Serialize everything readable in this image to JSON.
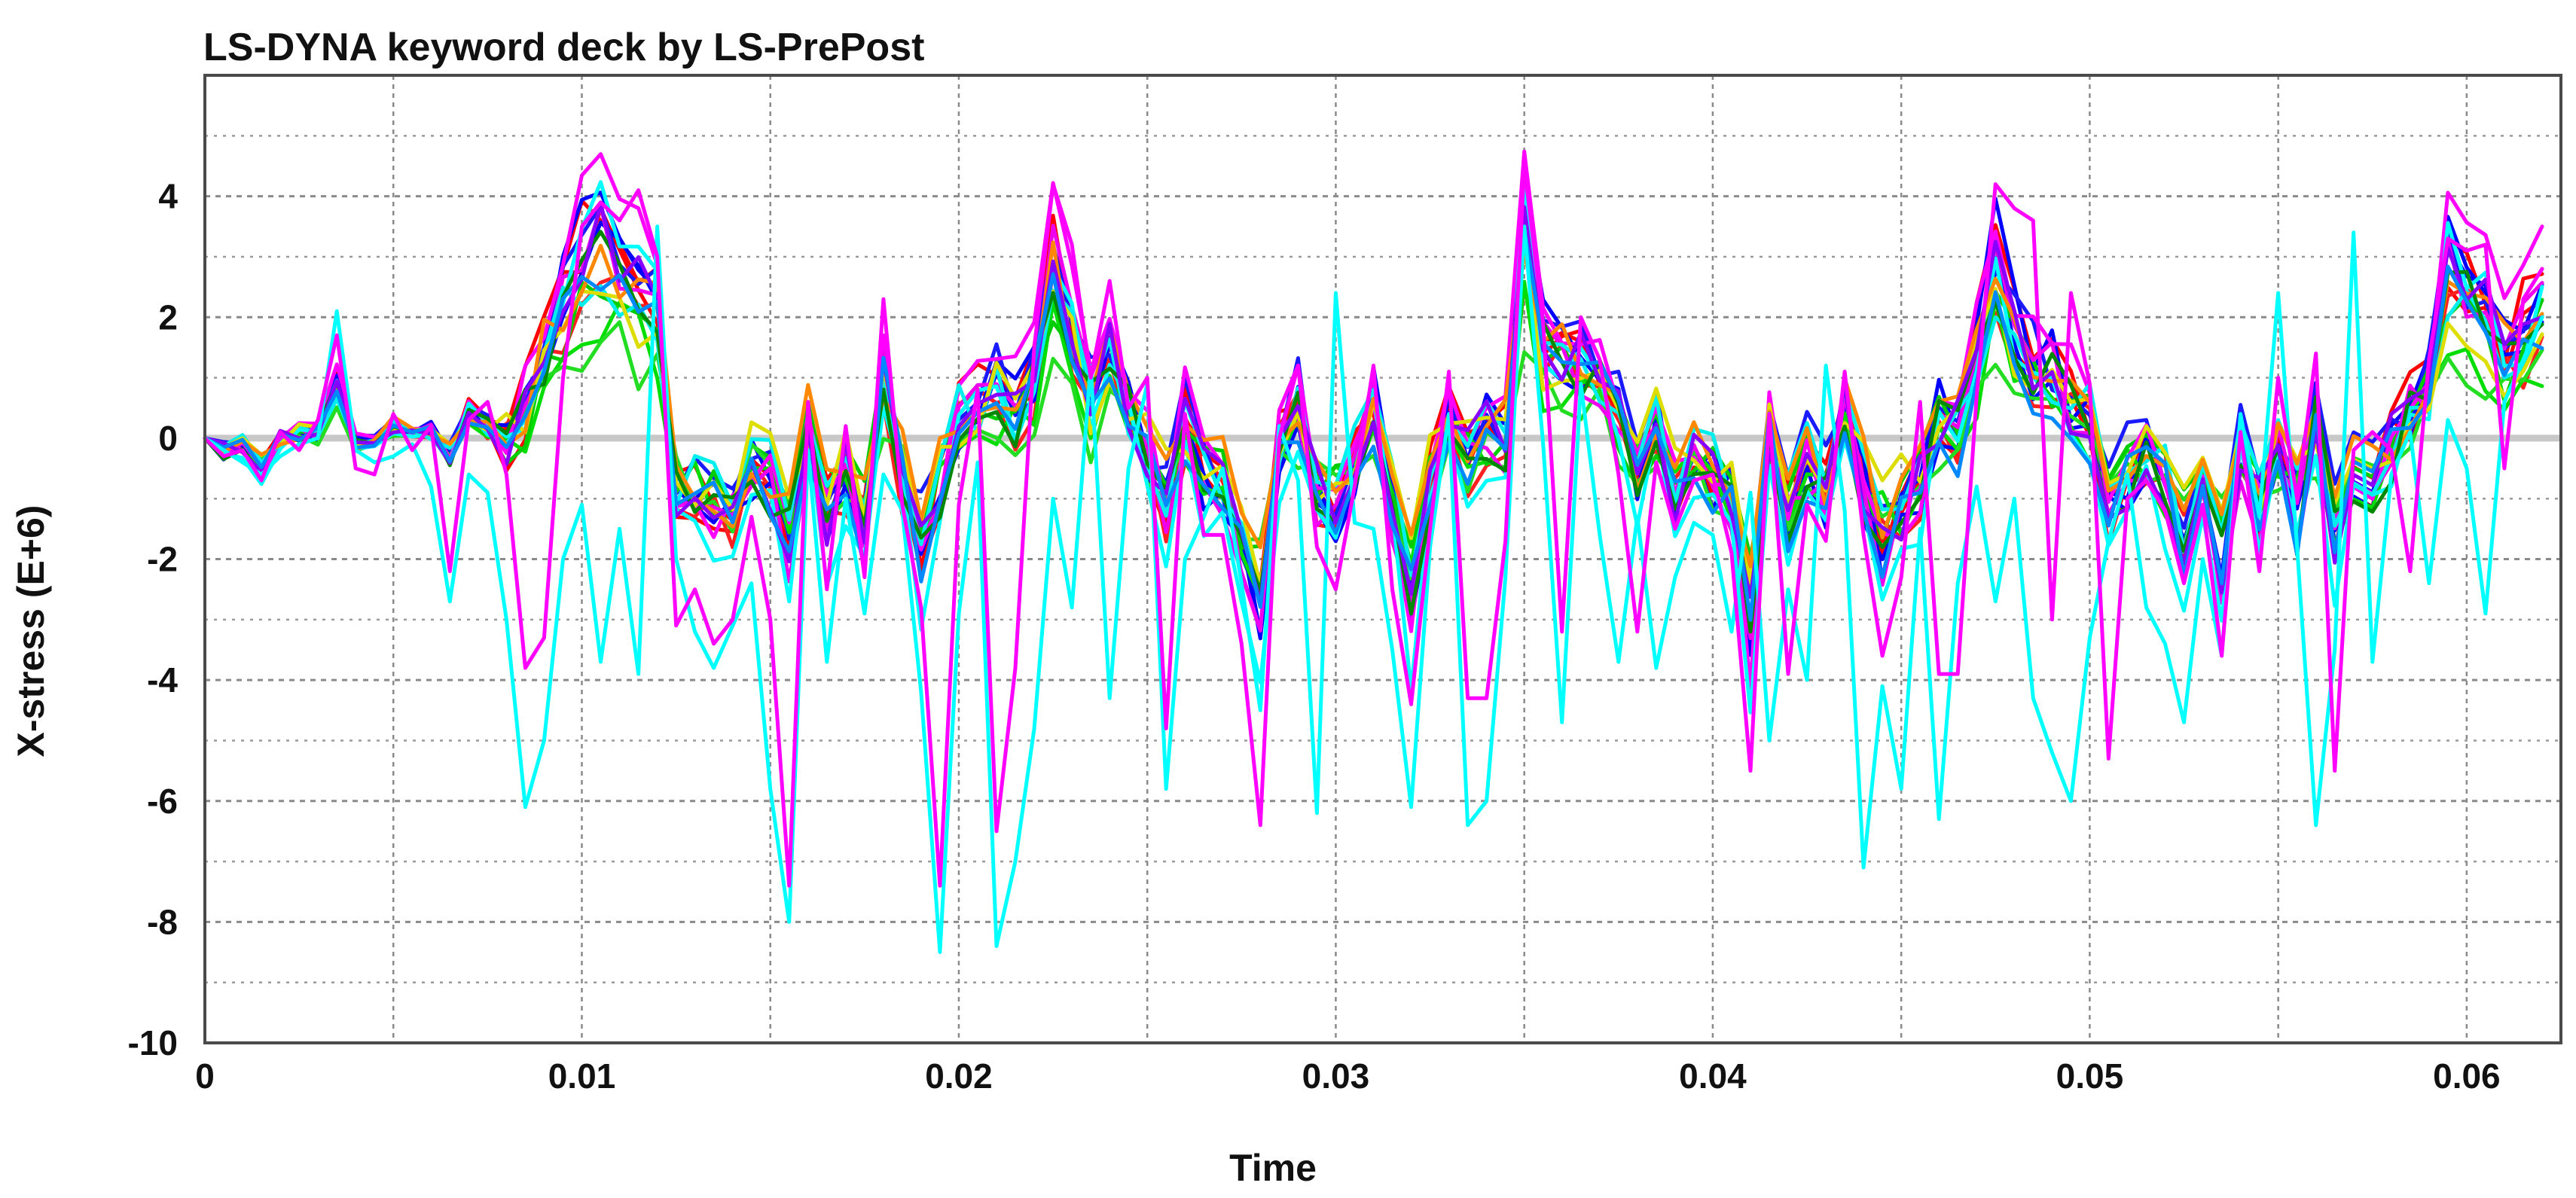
{
  "chart_data": {
    "type": "line",
    "title": "LS-DYNA keyword deck by LS-PrePost",
    "xlabel": "Time",
    "ylabel": "X-stress (E+6)",
    "xlim": [
      0,
      0.0625
    ],
    "ylim": [
      -10,
      6
    ],
    "x_ticks": [
      0,
      0.01,
      0.02,
      0.03,
      0.04,
      0.05,
      0.06
    ],
    "x_tick_labels": [
      "0",
      "0.01",
      "0.02",
      "0.03",
      "0.04",
      "0.05",
      "0.06"
    ],
    "y_ticks": [
      -10,
      -8,
      -6,
      -4,
      -2,
      0,
      2,
      4
    ],
    "y_tick_labels": [
      "-10",
      "-8",
      "-6",
      "-4",
      "-2",
      "0",
      "2",
      "4"
    ],
    "grid": true,
    "legend": "none",
    "x": [
      0,
      0.0005,
      0.001,
      0.0015,
      0.002,
      0.0025,
      0.003,
      0.0035,
      0.004,
      0.0045,
      0.005,
      0.0055,
      0.006,
      0.0065,
      0.007,
      0.0075,
      0.008,
      0.0085,
      0.009,
      0.0095,
      0.01,
      0.0105,
      0.011,
      0.0115,
      0.012,
      0.0125,
      0.013,
      0.0135,
      0.014,
      0.0145,
      0.015,
      0.0155,
      0.016,
      0.0165,
      0.017,
      0.0175,
      0.018,
      0.0185,
      0.019,
      0.0195,
      0.02,
      0.0205,
      0.021,
      0.0215,
      0.022,
      0.0225,
      0.023,
      0.0235,
      0.024,
      0.0245,
      0.025,
      0.0255,
      0.026,
      0.0265,
      0.027,
      0.0275,
      0.028,
      0.0285,
      0.029,
      0.0295,
      0.03,
      0.0305,
      0.031,
      0.0315,
      0.032,
      0.0325,
      0.033,
      0.0335,
      0.034,
      0.0345,
      0.035,
      0.0355,
      0.036,
      0.0365,
      0.037,
      0.0375,
      0.038,
      0.0385,
      0.039,
      0.0395,
      0.04,
      0.0405,
      0.041,
      0.0415,
      0.042,
      0.0425,
      0.043,
      0.0435,
      0.044,
      0.0445,
      0.045,
      0.0455,
      0.046,
      0.0465,
      0.047,
      0.0475,
      0.048,
      0.0485,
      0.049,
      0.0495,
      0.05,
      0.0505,
      0.051,
      0.0515,
      0.052,
      0.0525,
      0.053,
      0.0535,
      0.054,
      0.0545,
      0.055,
      0.0555,
      0.056,
      0.0565,
      0.057,
      0.0575,
      0.058,
      0.0585,
      0.059,
      0.0595,
      0.06,
      0.0605,
      0.061,
      0.0615,
      0.062,
      0.0625
    ],
    "base": [
      0,
      -0.2,
      -0.1,
      -0.5,
      0,
      0.1,
      0.1,
      0.9,
      -0.1,
      0,
      0.2,
      0,
      0.1,
      -0.3,
      0.4,
      0.2,
      0,
      0.5,
      1.4,
      2.2,
      3.0,
      3.3,
      2.8,
      2.5,
      2.3,
      -0.9,
      -1.0,
      -1.1,
      -1.3,
      -0.5,
      -0.7,
      -1.6,
      0.2,
      -1.2,
      -0.6,
      -1.5,
      1.1,
      -0.6,
      -1.8,
      -0.8,
      0.3,
      0.6,
      0.8,
      0.4,
      1.0,
      2.9,
      1.8,
      0.7,
      1.6,
      0.6,
      -0.3,
      -1.1,
      0.3,
      -0.6,
      -0.8,
      -1.8,
      -2.8,
      -0.1,
      0.5,
      -0.9,
      -1.1,
      -0.4,
      0.6,
      -1.0,
      -2.6,
      -0.7,
      0.5,
      -0.3,
      0.1,
      0.0,
      3.6,
      1.5,
      1.4,
      1.2,
      1.0,
      0.4,
      -0.6,
      0.3,
      -0.9,
      -0.2,
      -0.6,
      -0.9,
      -3.0,
      0.2,
      -1.3,
      -0.4,
      -0.9,
      0.5,
      -0.8,
      -1.7,
      -1.2,
      -0.8,
      0.4,
      0.1,
      1.4,
      2.8,
      1.7,
      1.2,
      1.1,
      0.6,
      0.3,
      -1.2,
      -0.6,
      -0.3,
      -0.8,
      -1.7,
      -0.9,
      -2.0,
      -0.1,
      -1.1,
      -0.2,
      -1.3,
      0.3,
      -1.5,
      -0.5,
      -0.6,
      -0.1,
      0.4,
      0.9,
      2.8,
      2.4,
      2.1,
      1.3,
      1.7,
      2.2
    ],
    "series": [
      {
        "color": "#ff0000",
        "scale": 1.0,
        "shift": 0.0,
        "seed": 1
      },
      {
        "color": "#ff0000",
        "scale": 1.15,
        "shift": 0.2,
        "seed": 2
      },
      {
        "color": "#ff2020",
        "scale": 0.9,
        "shift": -0.2,
        "seed": 3
      },
      {
        "color": "#0000ff",
        "scale": 1.2,
        "shift": 0.1,
        "seed": 4
      },
      {
        "color": "#0000ff",
        "scale": 1.05,
        "shift": -0.1,
        "seed": 5
      },
      {
        "color": "#1a1aff",
        "scale": 0.95,
        "shift": 0.3,
        "seed": 6
      },
      {
        "color": "#00dd00",
        "scale": 0.7,
        "shift": -0.2,
        "seed": 7
      },
      {
        "color": "#00cc00",
        "scale": 0.8,
        "shift": 0.0,
        "seed": 8
      },
      {
        "color": "#22dd22",
        "scale": 0.6,
        "shift": -0.3,
        "seed": 9
      },
      {
        "color": "#ff00ff",
        "scale": 1.3,
        "shift": 0.3,
        "seed": 10
      },
      {
        "color": "#ee00ee",
        "scale": 1.1,
        "shift": -0.1,
        "seed": 11
      },
      {
        "color": "#00ffff",
        "scale": 1.25,
        "shift": -0.4,
        "seed": 12
      },
      {
        "color": "#00eeee",
        "scale": 0.85,
        "shift": 0.1,
        "seed": 13
      },
      {
        "color": "#dddd00",
        "scale": 0.75,
        "shift": 0.1,
        "seed": 14
      },
      {
        "color": "#ff8800",
        "scale": 0.9,
        "shift": 0.2,
        "seed": 15
      },
      {
        "color": "#008800",
        "scale": 1.0,
        "shift": -0.1,
        "seed": 16
      },
      {
        "color": "#8800ff",
        "scale": 1.05,
        "shift": 0.0,
        "seed": 17
      },
      {
        "color": "#0088ff",
        "scale": 0.95,
        "shift": -0.2,
        "seed": 18
      }
    ],
    "extreme_series": [
      {
        "color": "#00ffff",
        "y": [
          0,
          -0.2,
          -0.4,
          -0.6,
          -0.3,
          -0.1,
          0,
          2.1,
          -0.2,
          -0.4,
          -0.3,
          -0.1,
          -0.8,
          -2.7,
          -0.6,
          -0.9,
          -3.0,
          -6.1,
          -5.0,
          -2.0,
          -1.1,
          -3.7,
          -1.5,
          -3.9,
          3.5,
          -2.0,
          -3.2,
          -3.8,
          -3.1,
          -2.4,
          -5.8,
          -8.0,
          -0.2,
          -3.7,
          -1.0,
          -2.9,
          -0.6,
          -1.2,
          -4.2,
          -8.5,
          -2.9,
          -0.4,
          -8.4,
          -7.0,
          -4.8,
          -1.0,
          -2.8,
          1.2,
          -4.3,
          -0.5,
          0.9,
          -5.8,
          -2.0,
          -1.3,
          -0.5,
          -2.4,
          -4.5,
          0.2,
          -0.7,
          -6.2,
          2.4,
          -1.4,
          -1.5,
          -3.5,
          -6.1,
          -1.8,
          0.4,
          -6.4,
          -6.0,
          -2.3,
          3.5,
          -0.1,
          -4.7,
          0.9,
          -1.6,
          -3.7,
          -1.3,
          -3.8,
          -2.3,
          -1.4,
          -1.6,
          -3.2,
          -0.9,
          -5.0,
          -2.5,
          -4.0,
          1.2,
          -1.2,
          -7.1,
          -4.1,
          -5.8,
          -1.5,
          -6.3,
          -2.4,
          -0.8,
          -2.7,
          -1.0,
          -4.3,
          -5.2,
          -6.0,
          -3.3,
          -1.7,
          -0.6,
          -2.8,
          -3.4,
          -4.7,
          -2.0,
          -3.6,
          0.4,
          -1.3,
          2.4,
          -1.8,
          -6.4,
          -3.5,
          3.4,
          -3.7,
          -0.6,
          0.1,
          -2.4,
          0.3,
          -0.5,
          -2.9,
          0.6,
          1.3,
          2.0
        ]
      },
      {
        "color": "#ff00ff",
        "y": [
          0,
          -0.3,
          -0.2,
          -0.7,
          0.1,
          -0.2,
          0.3,
          1.7,
          -0.5,
          -0.6,
          0.4,
          -0.2,
          0.2,
          -2.2,
          0.3,
          0.6,
          -0.6,
          -3.8,
          -3.3,
          1.0,
          3.5,
          3.9,
          3.6,
          4.1,
          3.0,
          -3.1,
          -2.5,
          -3.4,
          -3.0,
          -1.3,
          -3.0,
          -7.4,
          0.6,
          -2.5,
          0.2,
          -2.3,
          2.3,
          -1.1,
          -2.8,
          -7.4,
          -1.1,
          0.8,
          -6.5,
          -3.8,
          1.5,
          4.2,
          3.2,
          1.0,
          2.6,
          0.5,
          1.0,
          -4.8,
          0.4,
          -1.6,
          -1.6,
          -3.4,
          -6.4,
          0.0,
          1.2,
          -1.8,
          -2.5,
          -0.8,
          1.2,
          -2.5,
          -4.4,
          -1.5,
          1.1,
          -4.3,
          -4.3,
          -1.7,
          4.5,
          1.9,
          -3.2,
          2.0,
          1.3,
          -0.6,
          -3.2,
          -0.4,
          -1.5,
          -0.7,
          -0.6,
          -1.9,
          -5.5,
          0.4,
          -3.9,
          -1.1,
          -1.7,
          1.1,
          -1.6,
          -3.6,
          -2.3,
          0.6,
          -3.9,
          -3.9,
          0.7,
          4.2,
          3.8,
          3.6,
          -3.0,
          2.4,
          0.9,
          -5.3,
          -1.0,
          -0.7,
          -1.2,
          -2.4,
          -1.1,
          -3.6,
          0.1,
          -2.2,
          1.0,
          -1.0,
          1.4,
          -5.5,
          -0.2,
          0.1,
          -0.2,
          -2.2,
          1.3,
          3.3,
          3.1,
          3.2,
          -0.5,
          2.3,
          2.8
        ]
      }
    ]
  }
}
